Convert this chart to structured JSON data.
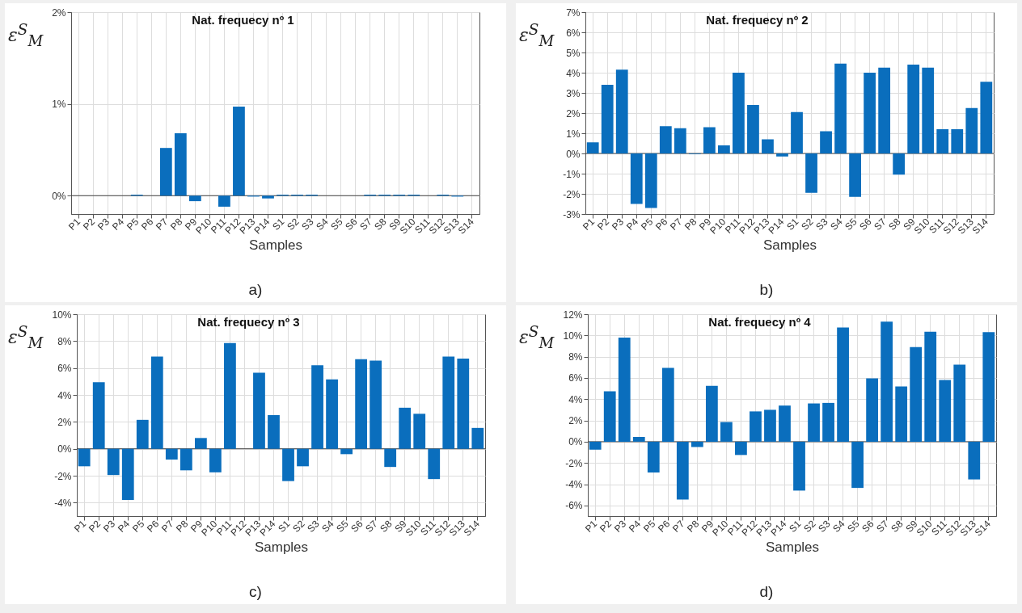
{
  "chart_data": [
    {
      "type": "bar",
      "title": "Nat. frequecy nº 1",
      "xlabel": "Samples",
      "ylabel": "ε$^{S}$$_{M}$",
      "annotations": [
        "a)"
      ],
      "color": "#0a6ebd",
      "grid": true,
      "categories": [
        "P1",
        "P2",
        "P3",
        "P4",
        "P5",
        "P6",
        "P7",
        "P8",
        "P9",
        "P10",
        "P11",
        "P12",
        "P13",
        "P14",
        "S1",
        "S2",
        "S3",
        "S4",
        "S5",
        "S6",
        "S7",
        "S8",
        "S9",
        "S10",
        "S11",
        "S12",
        "S13",
        "S14"
      ],
      "values": [
        0,
        0,
        0,
        0,
        0.01,
        0,
        0.52,
        0.68,
        -0.06,
        0,
        -0.12,
        0.97,
        -0.01,
        -0.03,
        0.01,
        0.01,
        0.01,
        0,
        0,
        0,
        0.01,
        0.01,
        0.01,
        0.01,
        0,
        0.01,
        -0.01,
        0
      ],
      "ylim": [
        -0.2,
        2
      ],
      "yticks": [
        {
          "value": 0,
          "label": "0%"
        },
        {
          "value": 1,
          "label": "1%"
        },
        {
          "value": 2,
          "label": "2%"
        }
      ]
    },
    {
      "type": "bar",
      "title": "Nat. frequecy nº 2",
      "xlabel": "Samples",
      "ylabel": "ε$^{S}$$_{M}$",
      "annotations": [
        "b)"
      ],
      "color": "#0a6ebd",
      "grid": true,
      "categories": [
        "P1",
        "P2",
        "P3",
        "P4",
        "P5",
        "P6",
        "P7",
        "P8",
        "P9",
        "P10",
        "P11",
        "P12",
        "P13",
        "P14",
        "S1",
        "S2",
        "S3",
        "S4",
        "S5",
        "S6",
        "S7",
        "S8",
        "S9",
        "S10",
        "S11",
        "S12",
        "S13",
        "S14"
      ],
      "values": [
        0.55,
        3.4,
        4.15,
        -2.5,
        -2.7,
        1.35,
        1.25,
        -0.03,
        1.3,
        0.4,
        4.0,
        2.4,
        0.7,
        -0.15,
        2.05,
        -1.95,
        1.1,
        4.45,
        -2.15,
        4.0,
        4.25,
        -1.05,
        4.4,
        4.25,
        1.2,
        1.2,
        2.25,
        3.55
      ],
      "ylim": [
        -3,
        7
      ],
      "yticks": [
        {
          "value": -3,
          "label": "-3%"
        },
        {
          "value": -2,
          "label": "-2%"
        },
        {
          "value": -1,
          "label": "-1%"
        },
        {
          "value": 0,
          "label": "0%"
        },
        {
          "value": 1,
          "label": "1%"
        },
        {
          "value": 2,
          "label": "2%"
        },
        {
          "value": 3,
          "label": "3%"
        },
        {
          "value": 4,
          "label": "4%"
        },
        {
          "value": 5,
          "label": "5%"
        },
        {
          "value": 6,
          "label": "6%"
        },
        {
          "value": 7,
          "label": "7%"
        }
      ]
    },
    {
      "type": "bar",
      "title": "Nat. frequecy nº 3",
      "xlabel": "Samples",
      "ylabel": "ε$^{S}$$_{M}$",
      "annotations": [
        "c)"
      ],
      "color": "#0a6ebd",
      "grid": true,
      "categories": [
        "P1",
        "P2",
        "P3",
        "P4",
        "P5",
        "P6",
        "P7",
        "P8",
        "P9",
        "P10",
        "P11",
        "P12",
        "P13",
        "P14",
        "S1",
        "S2",
        "S3",
        "S4",
        "S5",
        "S6",
        "S7",
        "S8",
        "S9",
        "S10",
        "S11",
        "S12",
        "S13",
        "S14"
      ],
      "values": [
        -1.3,
        4.95,
        -1.95,
        -3.8,
        2.15,
        6.85,
        -0.8,
        -1.6,
        0.8,
        -1.75,
        7.85,
        0,
        5.65,
        2.5,
        -2.4,
        -1.3,
        6.2,
        5.15,
        -0.4,
        6.65,
        6.55,
        -1.35,
        3.05,
        2.6,
        -2.25,
        6.85,
        6.7,
        1.55
      ],
      "ylim": [
        -5,
        10
      ],
      "yticks": [
        {
          "value": -4,
          "label": "-4%"
        },
        {
          "value": -2,
          "label": "-2%"
        },
        {
          "value": 0,
          "label": "0%"
        },
        {
          "value": 2,
          "label": "2%"
        },
        {
          "value": 4,
          "label": "4%"
        },
        {
          "value": 6,
          "label": "6%"
        },
        {
          "value": 8,
          "label": "8%"
        },
        {
          "value": 10,
          "label": "10%"
        }
      ]
    },
    {
      "type": "bar",
      "title": "Nat. frequecy nº 4",
      "xlabel": "Samples",
      "ylabel": "ε$^{S}$$_{M}$",
      "annotations": [
        "d)"
      ],
      "color": "#0a6ebd",
      "grid": true,
      "categories": [
        "P1",
        "P2",
        "P3",
        "P4",
        "P5",
        "P6",
        "P7",
        "P8",
        "P9",
        "P10",
        "P11",
        "P12",
        "P13",
        "P14",
        "S1",
        "S2",
        "S3",
        "S4",
        "S5",
        "S6",
        "S7",
        "S8",
        "S9",
        "S10",
        "S11",
        "S12",
        "S13",
        "S14"
      ],
      "values": [
        -0.75,
        4.75,
        9.8,
        0.45,
        -2.9,
        6.95,
        -5.45,
        -0.5,
        5.25,
        1.85,
        -1.25,
        2.85,
        3.0,
        3.4,
        -4.6,
        3.6,
        3.65,
        10.75,
        -4.35,
        5.95,
        11.3,
        5.2,
        8.9,
        10.35,
        5.8,
        7.25,
        -3.55,
        10.3
      ],
      "ylim": [
        -7,
        12
      ],
      "yticks": [
        {
          "value": -6,
          "label": "-6%"
        },
        {
          "value": -4,
          "label": "-4%"
        },
        {
          "value": -2,
          "label": "-2%"
        },
        {
          "value": 0,
          "label": "0%"
        },
        {
          "value": 2,
          "label": "2%"
        },
        {
          "value": 4,
          "label": "4%"
        },
        {
          "value": 6,
          "label": "6%"
        },
        {
          "value": 8,
          "label": "8%"
        },
        {
          "value": 10,
          "label": "10%"
        },
        {
          "value": 12,
          "label": "12%"
        }
      ]
    }
  ]
}
